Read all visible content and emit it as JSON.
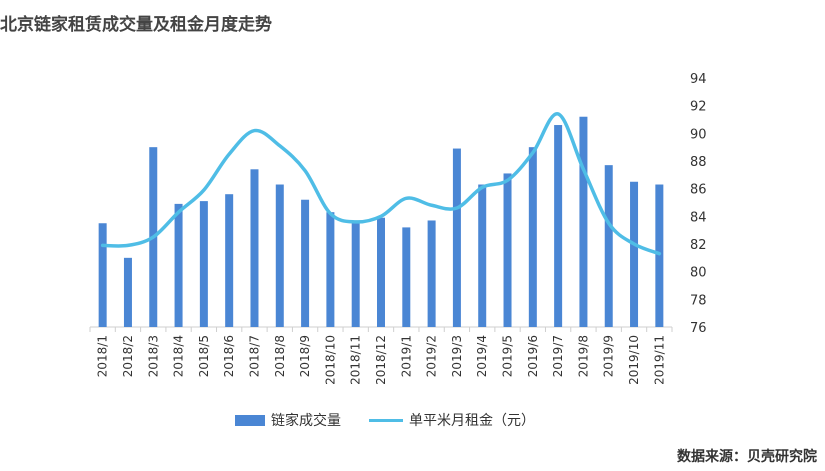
{
  "title": "北京链家租赁成交量及租金月度走势",
  "source": "数据来源：贝壳研究院",
  "colors": {
    "bar": "#4a86d4",
    "line": "#4fbde6",
    "axis": "#cfcfcf",
    "text": "#333333"
  },
  "chart_data": {
    "type": "bar+line",
    "categories": [
      "2018/1",
      "2018/2",
      "2018/3",
      "2018/4",
      "2018/5",
      "2018/6",
      "2018/7",
      "2018/8",
      "2018/9",
      "2018/10",
      "2018/11",
      "2018/12",
      "2019/1",
      "2019/2",
      "2019/3",
      "2019/4",
      "2019/5",
      "2019/6",
      "2019/7",
      "2019/8",
      "2019/9",
      "2019/10",
      "2019/11"
    ],
    "series": [
      {
        "name": "链家成交量",
        "type": "bar",
        "axis": "hidden",
        "values": [
          83.5,
          81.0,
          89.0,
          84.9,
          85.1,
          85.6,
          87.4,
          86.3,
          85.2,
          84.3,
          83.6,
          83.9,
          83.2,
          83.7,
          88.9,
          86.3,
          87.1,
          89.0,
          90.6,
          91.2,
          87.7,
          86.5,
          86.3
        ]
      },
      {
        "name": "单平米月租金（元）",
        "type": "line",
        "axis": "right",
        "values": [
          81.9,
          81.9,
          82.5,
          84.3,
          85.9,
          88.5,
          90.2,
          89.1,
          87.3,
          84.2,
          83.6,
          84.0,
          85.3,
          84.8,
          84.6,
          86.1,
          86.6,
          88.6,
          91.4,
          87.4,
          83.5,
          82.0,
          81.3
        ]
      }
    ],
    "y_right": {
      "min": 76,
      "max": 94,
      "ticks": [
        76,
        78,
        80,
        82,
        84,
        86,
        88,
        90,
        92,
        94
      ]
    },
    "legend": [
      "链家成交量",
      "单平米月租金（元）"
    ],
    "legend_position": "bottom"
  }
}
